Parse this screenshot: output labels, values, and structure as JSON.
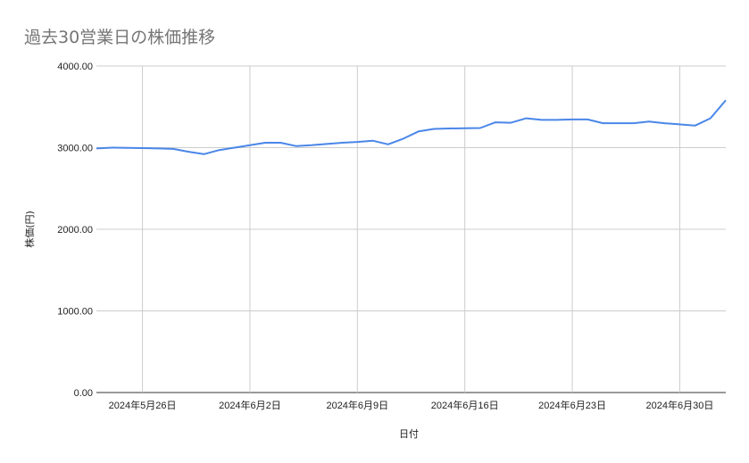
{
  "chart_data": {
    "type": "line",
    "title": "過去30営業日の株価推移",
    "xlabel": "日付",
    "ylabel": "株価(円)",
    "ylim": [
      0,
      4000
    ],
    "yticks": [
      "0.00",
      "1000.00",
      "2000.00",
      "3000.00",
      "4000.00"
    ],
    "xticks": [
      {
        "date": "2024-05-26",
        "label": "2024年5月26日"
      },
      {
        "date": "2024-06-02",
        "label": "2024年6月2日"
      },
      {
        "date": "2024-06-09",
        "label": "2024年6月9日"
      },
      {
        "date": "2024-06-16",
        "label": "2024年6月16日"
      },
      {
        "date": "2024-06-23",
        "label": "2024年6月23日"
      },
      {
        "date": "2024-06-30",
        "label": "2024年6月30日"
      }
    ],
    "xlim": [
      "2024-05-23",
      "2024-07-03"
    ],
    "grid": true,
    "color": "#4a86e8",
    "series": [
      {
        "x": [
          "2024-05-23",
          "2024-05-24",
          "2024-05-25",
          "2024-05-26",
          "2024-05-27",
          "2024-05-28",
          "2024-05-29",
          "2024-05-30",
          "2024-05-31",
          "2024-06-01",
          "2024-06-02",
          "2024-06-03",
          "2024-06-04",
          "2024-06-05",
          "2024-06-06",
          "2024-06-07",
          "2024-06-08",
          "2024-06-09",
          "2024-06-10",
          "2024-06-11",
          "2024-06-12",
          "2024-06-13",
          "2024-06-14",
          "2024-06-15",
          "2024-06-16",
          "2024-06-17",
          "2024-06-18",
          "2024-06-19",
          "2024-06-20",
          "2024-06-21",
          "2024-06-22",
          "2024-06-23",
          "2024-06-24",
          "2024-06-25",
          "2024-06-26",
          "2024-06-27",
          "2024-06-28",
          "2024-06-29",
          "2024-06-30",
          "2024-07-01",
          "2024-07-02",
          "2024-07-03"
        ],
        "values": [
          2990,
          3000,
          2998,
          2995,
          2990,
          2985,
          2950,
          2920,
          2970,
          3000,
          3030,
          3060,
          3060,
          3020,
          3030,
          3045,
          3060,
          3070,
          3085,
          3040,
          3110,
          3200,
          3230,
          3235,
          3237,
          3240,
          3310,
          3305,
          3360,
          3340,
          3340,
          3345,
          3345,
          3300,
          3300,
          3300,
          3320,
          3300,
          3285,
          3270,
          3360,
          3580
        ]
      }
    ]
  }
}
